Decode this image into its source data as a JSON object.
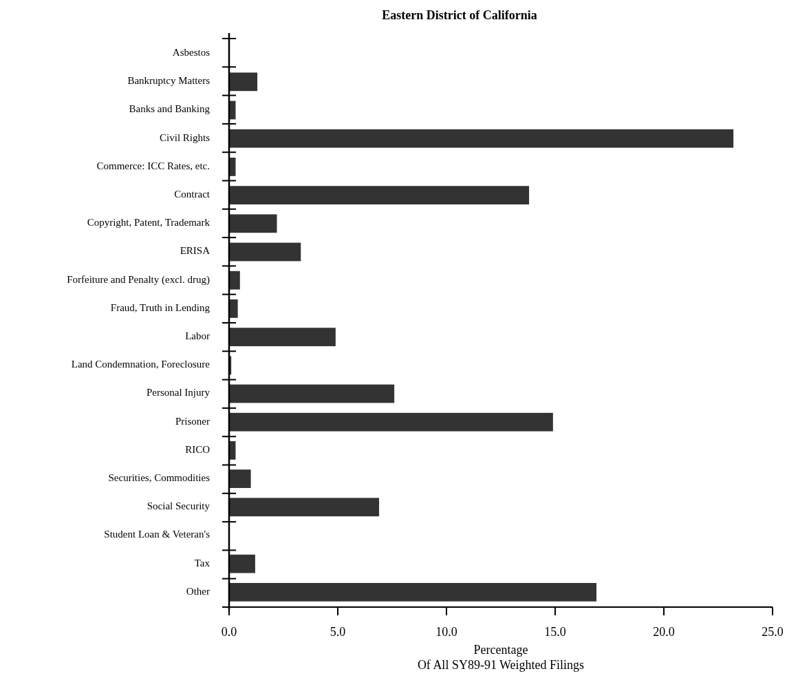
{
  "chart_data": {
    "type": "bar",
    "orientation": "horizontal",
    "title": "Eastern District of California",
    "xlabel": "Percentage\nOf All SY89-91 Weighted Filings",
    "categories": [
      "Asbestos",
      "Bankruptcy Matters",
      "Banks and Banking",
      "Civil Rights",
      "Commerce: ICC Rates, etc.",
      "Contract",
      "Copyright, Patent, Trademark",
      "ERISA",
      "Forfeiture and Penalty (excl. drug)",
      "Fraud, Truth in Lending",
      "Labor",
      "Land Condemnation, Foreclosure",
      "Personal Injury",
      "Prisoner",
      "RICO",
      "Securities, Commodities",
      "Social Security",
      "Student Loan & Veteran's",
      "Tax",
      "Other"
    ],
    "values": [
      0,
      1.3,
      0.3,
      23.2,
      0.3,
      13.8,
      2.2,
      3.3,
      0.5,
      0.4,
      4.9,
      0.1,
      7.6,
      14.9,
      0.3,
      1.0,
      6.9,
      0,
      1.2,
      16.9
    ],
    "color": "#333333",
    "xlim": [
      0,
      25
    ],
    "xticks": [
      {
        "value": 0,
        "label": "0.0"
      },
      {
        "value": 5,
        "label": "5.0"
      },
      {
        "value": 10,
        "label": "10.0"
      },
      {
        "value": 15,
        "label": "15.0"
      },
      {
        "value": 20,
        "label": "20.0"
      },
      {
        "value": 25,
        "label": "25.0"
      }
    ],
    "grid": false
  }
}
